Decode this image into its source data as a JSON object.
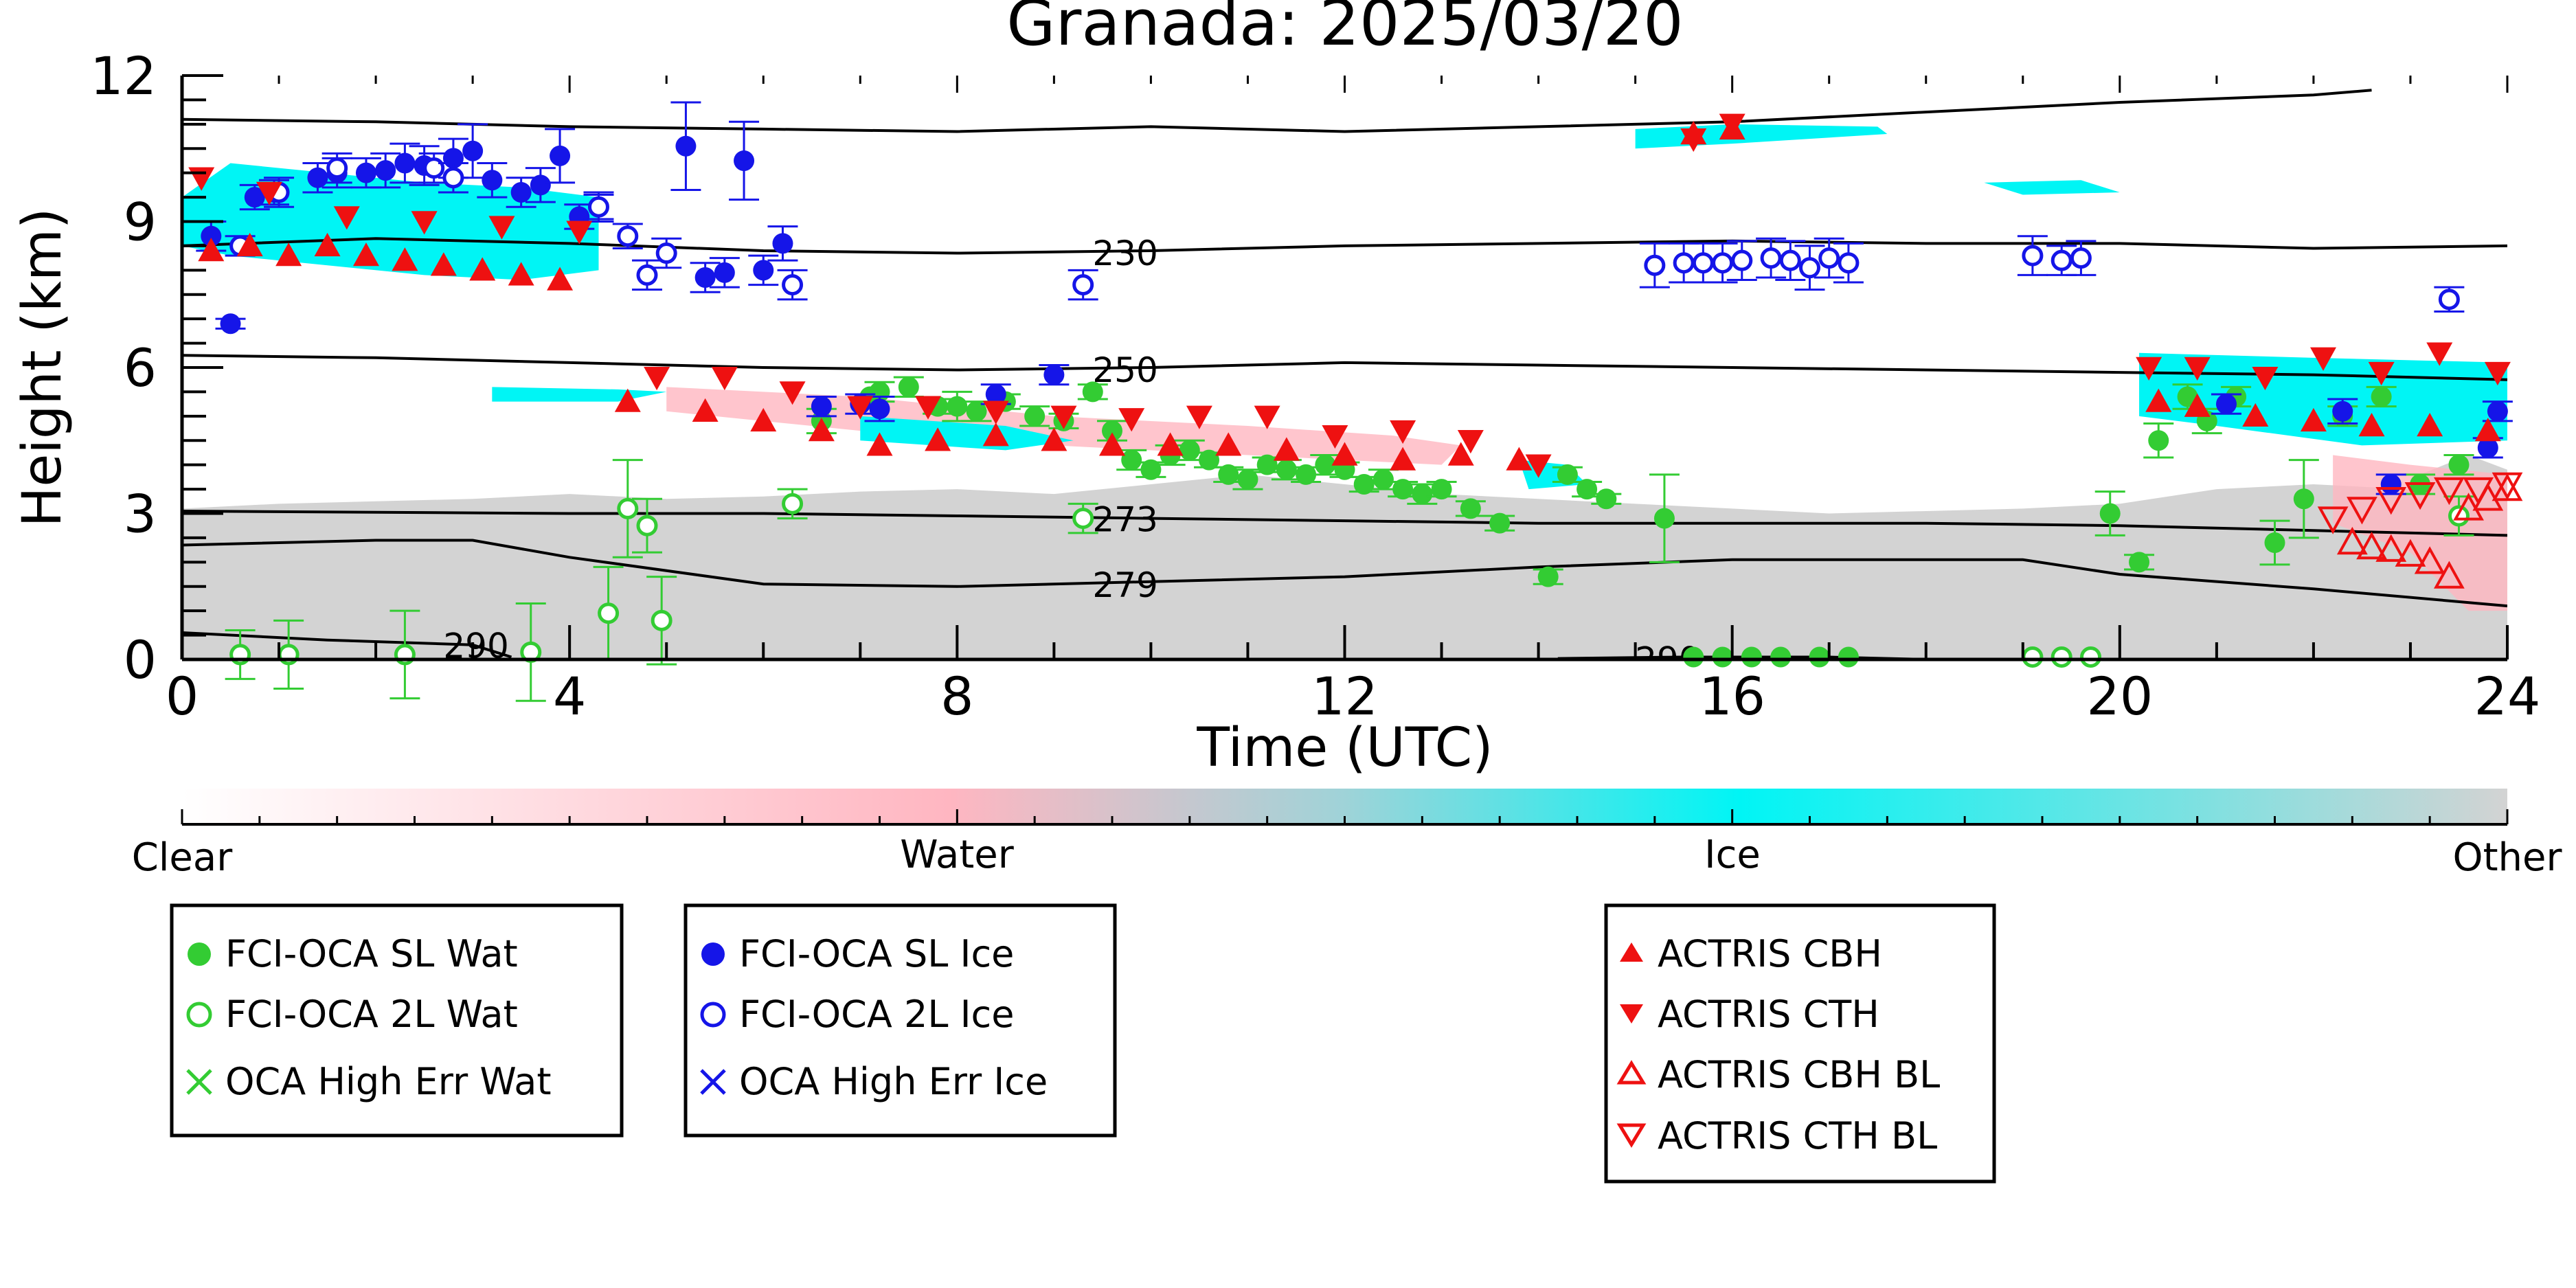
{
  "chart_data": {
    "type": "scatter",
    "title": "Granada: 2025/03/20",
    "xlabel": "Time (UTC)",
    "ylabel": "Height (km)",
    "xlim": [
      0,
      24
    ],
    "ylim": [
      0,
      12
    ],
    "xticks": [
      0,
      4,
      8,
      12,
      16,
      20,
      24
    ],
    "yticks": [
      0,
      3,
      6,
      9,
      12
    ],
    "grid": false,
    "colorbar": {
      "labels": [
        "Clear",
        "Water",
        "Ice",
        "Other"
      ],
      "colors": [
        "#ffffff",
        "#ffb6c1",
        "#00f5f5",
        "#d3d3d3"
      ]
    },
    "isotherms": [
      {
        "label": "230",
        "label_at": 9.4,
        "points": [
          [
            0,
            8.5
          ],
          [
            2,
            8.65
          ],
          [
            4,
            8.55
          ],
          [
            6,
            8.4
          ],
          [
            8,
            8.35
          ],
          [
            10,
            8.4
          ],
          [
            12,
            8.5
          ],
          [
            14,
            8.55
          ],
          [
            16,
            8.6
          ],
          [
            18,
            8.55
          ],
          [
            20,
            8.55
          ],
          [
            22,
            8.45
          ],
          [
            24,
            8.5
          ]
        ]
      },
      {
        "label": "250",
        "label_at": 9.4,
        "points": [
          [
            0,
            6.25
          ],
          [
            2,
            6.2
          ],
          [
            4,
            6.1
          ],
          [
            6,
            6.0
          ],
          [
            8,
            5.95
          ],
          [
            10,
            6.0
          ],
          [
            12,
            6.1
          ],
          [
            14,
            6.05
          ],
          [
            16,
            6.0
          ],
          [
            18,
            5.95
          ],
          [
            20,
            5.9
          ],
          [
            22,
            5.85
          ],
          [
            24,
            5.75
          ]
        ]
      },
      {
        "label": "273",
        "label_at": 9.4,
        "points": [
          [
            0,
            3.05
          ],
          [
            4,
            3.0
          ],
          [
            6,
            3.0
          ],
          [
            8,
            2.95
          ],
          [
            10,
            2.9
          ],
          [
            12,
            2.85
          ],
          [
            14,
            2.8
          ],
          [
            16,
            2.8
          ],
          [
            18,
            2.8
          ],
          [
            20,
            2.75
          ],
          [
            22,
            2.65
          ],
          [
            24,
            2.55
          ]
        ]
      },
      {
        "label": "279",
        "label_at": 9.4,
        "points": [
          [
            0,
            2.35
          ],
          [
            2,
            2.45
          ],
          [
            3,
            2.45
          ],
          [
            4,
            2.1
          ],
          [
            6,
            1.55
          ],
          [
            8,
            1.5
          ],
          [
            10,
            1.6
          ],
          [
            12,
            1.7
          ],
          [
            14,
            1.9
          ],
          [
            16,
            2.05
          ],
          [
            18,
            2.05
          ],
          [
            19,
            2.05
          ],
          [
            20,
            1.75
          ],
          [
            22,
            1.45
          ],
          [
            24,
            1.1
          ]
        ]
      },
      {
        "label": "290",
        "label_at": 2.7,
        "points": [
          [
            0,
            0.55
          ],
          [
            1.5,
            0.4
          ],
          [
            3,
            0.3
          ],
          [
            3.4,
            0.05
          ]
        ]
      },
      {
        "label": "290",
        "label_at": 15.0,
        "points": [
          [
            14.2,
            0.02
          ],
          [
            15.5,
            0.05
          ],
          [
            17,
            0.05
          ],
          [
            18,
            0.0
          ]
        ]
      },
      {
        "label": "",
        "label_at": null,
        "points": [
          [
            0,
            11.1
          ],
          [
            2,
            11.05
          ],
          [
            4,
            10.95
          ],
          [
            6,
            10.9
          ],
          [
            8,
            10.85
          ],
          [
            10,
            10.95
          ],
          [
            12,
            10.85
          ],
          [
            14,
            10.95
          ],
          [
            16,
            11.05
          ],
          [
            18,
            11.25
          ],
          [
            20,
            11.45
          ],
          [
            22,
            11.6
          ],
          [
            22.6,
            11.7
          ]
        ]
      }
    ],
    "series": [
      {
        "name": "FCI-OCA SL Wat",
        "marker": "filled-circle",
        "color": "#33cc33",
        "x": [
          6.6,
          7.1,
          7.2,
          7.5,
          7.8,
          8.0,
          8.2,
          8.5,
          8.8,
          9.1,
          9.4,
          9.6,
          9.8,
          10.0,
          10.2,
          10.4,
          10.6,
          10.8,
          11.0,
          11.2,
          11.4,
          11.6,
          11.8,
          12.0,
          12.2,
          12.4,
          12.6,
          12.8,
          13.0,
          13.3,
          13.6,
          14.1,
          14.3,
          14.5,
          14.7,
          15.3,
          15.6,
          15.9,
          16.2,
          16.5,
          16.9,
          17.2,
          19.9,
          20.2,
          20.4,
          20.7,
          20.9,
          21.2,
          21.6,
          21.9,
          22.3,
          22.7,
          23.1,
          23.5
        ],
        "y": [
          4.9,
          5.4,
          5.5,
          5.6,
          5.2,
          5.2,
          5.1,
          5.3,
          5.0,
          4.9,
          5.5,
          4.7,
          4.1,
          3.9,
          4.2,
          4.3,
          4.1,
          3.8,
          3.7,
          4.0,
          3.9,
          3.8,
          4.0,
          3.9,
          3.6,
          3.7,
          3.5,
          3.4,
          3.5,
          3.1,
          2.8,
          1.7,
          3.8,
          3.5,
          3.3,
          2.9,
          0.05,
          0.05,
          0.05,
          0.05,
          0.05,
          0.05,
          3.0,
          2.0,
          4.5,
          5.4,
          4.9,
          5.4,
          2.4,
          3.3,
          5.0,
          5.4,
          3.6,
          4.0
        ],
        "err": [
          0.25,
          0,
          0.2,
          0.2,
          0.15,
          0.3,
          0.2,
          0.15,
          0.2,
          0.15,
          0.15,
          0.2,
          0.2,
          0.15,
          0.2,
          0.2,
          0.15,
          0.15,
          0.2,
          0.15,
          0.2,
          0.15,
          0.2,
          0.15,
          0.15,
          0.2,
          0.15,
          0.2,
          0.15,
          0.15,
          0.15,
          0.15,
          0.15,
          0.15,
          0.1,
          0.9,
          0,
          0,
          0,
          0,
          0,
          0,
          0.45,
          0.15,
          0.35,
          0.25,
          0.25,
          0.2,
          0.45,
          0.8,
          0.2,
          0.2,
          0.2,
          0.2
        ]
      },
      {
        "name": "FCI-OCA 2L Wat",
        "marker": "open-circle",
        "color": "#33cc33",
        "x": [
          0.6,
          1.1,
          2.3,
          3.6,
          4.4,
          4.6,
          4.8,
          4.95,
          6.3,
          9.3,
          19.1,
          19.4,
          19.7,
          23.5
        ],
        "y": [
          0.1,
          0.1,
          0.1,
          0.15,
          0.95,
          3.1,
          2.75,
          0.8,
          3.2,
          2.9,
          0.05,
          0.05,
          0.05,
          2.95
        ],
        "err": [
          0.5,
          0.7,
          0.9,
          1.0,
          0.95,
          1.0,
          0.55,
          0.9,
          0.3,
          0.3,
          0,
          0,
          0,
          0.4
        ]
      },
      {
        "name": "OCA High Err Wat",
        "marker": "x",
        "color": "#33cc33",
        "x": [],
        "y": [],
        "err": []
      },
      {
        "name": "FCI-OCA SL Ice",
        "marker": "filled-circle",
        "color": "#1515e8",
        "x": [
          0.3,
          0.5,
          0.75,
          0.95,
          1.4,
          1.6,
          1.9,
          2.1,
          2.3,
          2.5,
          2.8,
          3.0,
          3.2,
          3.5,
          3.7,
          3.9,
          4.1,
          4.3,
          5.2,
          5.4,
          5.6,
          5.8,
          6.0,
          6.2,
          6.6,
          7.0,
          7.2,
          8.4,
          9.0,
          21.1,
          22.3,
          22.8,
          23.8,
          23.9
        ],
        "y": [
          8.7,
          6.9,
          9.5,
          9.6,
          9.9,
          10.0,
          10.0,
          10.05,
          10.2,
          10.15,
          10.3,
          10.45,
          9.85,
          9.6,
          9.75,
          10.35,
          9.1,
          9.3,
          10.55,
          7.85,
          7.95,
          10.25,
          8.0,
          8.55,
          5.2,
          5.25,
          5.15,
          5.45,
          5.85,
          5.25,
          5.1,
          3.6,
          4.35,
          5.1
        ],
        "err": [
          0.3,
          0.1,
          0.25,
          0.25,
          0.3,
          0.3,
          0.3,
          0.35,
          0.4,
          0.4,
          0.4,
          0.55,
          0.35,
          0.3,
          0.35,
          0.55,
          0.25,
          0.3,
          0.9,
          0.3,
          0.3,
          0.8,
          0.3,
          0.35,
          0.2,
          0.2,
          0.25,
          0.2,
          0.2,
          0.2,
          0.25,
          0.2,
          0.2,
          0.2
        ]
      },
      {
        "name": "FCI-OCA 2L Ice",
        "marker": "open-circle",
        "color": "#1515e8",
        "x": [
          0.6,
          1.0,
          1.6,
          2.6,
          2.8,
          4.3,
          4.6,
          4.8,
          5.0,
          6.3,
          9.3,
          15.2,
          15.5,
          15.7,
          15.9,
          16.1,
          16.4,
          16.6,
          16.8,
          17.0,
          17.2,
          19.1,
          19.4,
          19.6,
          23.4
        ],
        "y": [
          8.5,
          9.6,
          10.1,
          10.1,
          9.9,
          9.3,
          8.7,
          7.9,
          8.35,
          7.7,
          7.7,
          8.1,
          8.15,
          8.15,
          8.15,
          8.2,
          8.25,
          8.2,
          8.05,
          8.25,
          8.15,
          8.3,
          8.2,
          8.25,
          7.4
        ],
        "err": [
          0.2,
          0.3,
          0.3,
          0.3,
          0.3,
          0.25,
          0.25,
          0.3,
          0.3,
          0.3,
          0.3,
          0.45,
          0.4,
          0.4,
          0.4,
          0.4,
          0.4,
          0.4,
          0.45,
          0.4,
          0.4,
          0.4,
          0.3,
          0.35,
          0.25
        ]
      },
      {
        "name": "OCA High Err Ice",
        "marker": "x",
        "color": "#1515e8",
        "x": [],
        "y": [],
        "err": []
      },
      {
        "name": "ACTRIS CBH",
        "marker": "filled-triangle-up",
        "color": "#ee1111",
        "x": [
          0.3,
          0.7,
          1.1,
          1.5,
          1.9,
          2.3,
          2.7,
          3.1,
          3.5,
          3.9,
          4.6,
          5.4,
          6.0,
          6.6,
          7.2,
          7.8,
          8.4,
          9.0,
          9.6,
          10.2,
          10.8,
          11.4,
          12.0,
          12.6,
          13.2,
          13.8,
          15.6,
          16.0,
          20.4,
          20.8,
          21.4,
          22.0,
          22.6,
          23.2,
          23.8
        ],
        "y": [
          8.4,
          8.5,
          8.3,
          8.5,
          8.3,
          8.2,
          8.1,
          8.0,
          7.9,
          7.8,
          5.3,
          5.1,
          4.9,
          4.7,
          4.4,
          4.5,
          4.6,
          4.5,
          4.4,
          4.4,
          4.4,
          4.3,
          4.2,
          4.1,
          4.2,
          4.1,
          10.8,
          10.9,
          5.3,
          5.2,
          5.0,
          4.9,
          4.8,
          4.8,
          4.7
        ]
      },
      {
        "name": "ACTRIS CTH",
        "marker": "filled-triangle-down",
        "color": "#ee1111",
        "x": [
          0.2,
          0.9,
          1.7,
          2.5,
          3.3,
          4.1,
          4.9,
          5.6,
          6.3,
          7.0,
          7.7,
          8.4,
          9.1,
          9.8,
          10.5,
          11.2,
          11.9,
          12.6,
          13.3,
          14.0,
          15.6,
          16.0,
          20.3,
          20.8,
          21.5,
          22.1,
          22.7,
          23.3,
          23.9
        ],
        "y": [
          9.9,
          9.6,
          9.1,
          9.0,
          8.9,
          8.8,
          5.8,
          5.8,
          5.5,
          5.2,
          5.2,
          5.1,
          5.0,
          4.95,
          5.0,
          5.0,
          4.6,
          4.7,
          4.5,
          4.0,
          10.7,
          11.0,
          6.0,
          6.0,
          5.8,
          6.2,
          5.9,
          6.3,
          5.9
        ]
      },
      {
        "name": "ACTRIS CBH BL",
        "marker": "open-triangle-up",
        "color": "#ee1111",
        "x": [
          22.4,
          22.6,
          22.8,
          23.0,
          23.2,
          23.4,
          23.6,
          23.8,
          24.0
        ],
        "y": [
          2.4,
          2.3,
          2.25,
          2.15,
          2.0,
          1.7,
          3.1,
          3.3,
          3.5
        ]
      },
      {
        "name": "ACTRIS CTH BL",
        "marker": "open-triangle-down",
        "color": "#ee1111",
        "x": [
          22.2,
          22.5,
          22.8,
          23.1,
          23.4,
          23.7,
          24.0
        ],
        "y": [
          2.9,
          3.1,
          3.3,
          3.4,
          3.5,
          3.5,
          3.6
        ]
      }
    ],
    "legends": [
      {
        "entries": [
          "FCI-OCA SL Wat",
          "FCI-OCA 2L Wat",
          "OCA High Err Wat"
        ]
      },
      {
        "entries": [
          "FCI-OCA SL Ice",
          "FCI-OCA 2L Ice",
          "OCA High Err Ice"
        ]
      },
      {
        "entries": [
          "ACTRIS CBH",
          "ACTRIS CTH",
          "ACTRIS CBH BL",
          "ACTRIS CTH BL"
        ]
      }
    ]
  }
}
